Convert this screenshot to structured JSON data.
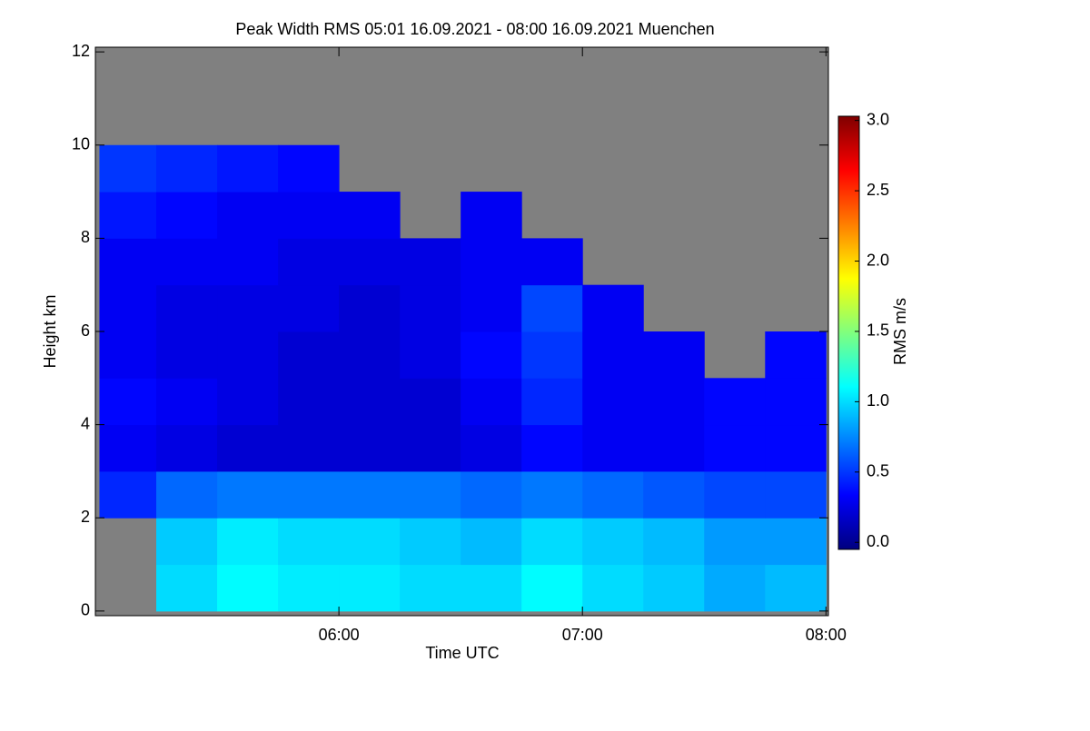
{
  "chart_data": {
    "type": "heatmap",
    "title": "Peak Width RMS   05:01 16.09.2021 - 08:00 16.09.2021 Muenchen",
    "x_label": "Time UTC",
    "y_label": "Height km",
    "colorbar_label": "RMS m/s",
    "xlim": [
      5.0,
      8.01
    ],
    "xticks": [
      {
        "value": 6,
        "label": "06:00"
      },
      {
        "value": 7,
        "label": "07:00"
      },
      {
        "value": 8,
        "label": "08:00"
      }
    ],
    "ylim": [
      -0.1,
      12.1
    ],
    "yticks": [
      0,
      2,
      4,
      6,
      8,
      10,
      12
    ],
    "clim": [
      -0.05,
      3.03
    ],
    "cticks": [
      {
        "value": 0,
        "label": "0.0"
      },
      {
        "value": 0.5,
        "label": "0.5"
      },
      {
        "value": 1,
        "label": "1.0"
      },
      {
        "value": 1.5,
        "label": "1.5"
      },
      {
        "value": 2,
        "label": "2.0"
      },
      {
        "value": 2.5,
        "label": "2.5"
      },
      {
        "value": 3,
        "label": "3.0"
      }
    ],
    "colormap": [
      "#00007f",
      "#0000ff",
      "#007fff",
      "#00ffff",
      "#7fff7f",
      "#ffff00",
      "#ff7f00",
      "#ff0000",
      "#7f0000"
    ],
    "nodata_color": "#808080",
    "xbins": [
      5.0167,
      5.25,
      5.5,
      5.75,
      6,
      6.25,
      6.5,
      6.75,
      7,
      7.25,
      7.5,
      7.75,
      8
    ],
    "ybins": [
      0,
      1,
      2,
      3,
      4,
      5,
      6,
      7,
      8,
      9,
      10,
      11,
      12
    ],
    "z": [
      [
        null,
        1.0,
        1.1,
        1.05,
        1.05,
        1.0,
        1.0,
        1.1,
        1.0,
        0.95,
        0.85,
        0.9
      ],
      [
        null,
        0.95,
        1.05,
        1.0,
        1.0,
        0.95,
        0.9,
        1.0,
        0.95,
        0.9,
        0.8,
        0.8
      ],
      [
        0.45,
        0.65,
        0.7,
        0.7,
        0.7,
        0.7,
        0.65,
        0.7,
        0.65,
        0.6,
        0.55,
        0.55
      ],
      [
        0.3,
        0.25,
        0.2,
        0.2,
        0.2,
        0.2,
        0.25,
        0.35,
        0.3,
        0.3,
        0.35,
        0.35
      ],
      [
        0.35,
        0.3,
        0.25,
        0.2,
        0.2,
        0.2,
        0.3,
        0.45,
        0.3,
        0.3,
        0.35,
        0.35
      ],
      [
        0.3,
        0.25,
        0.25,
        0.2,
        0.2,
        0.25,
        0.35,
        0.5,
        0.3,
        0.3,
        null,
        0.35
      ],
      [
        0.3,
        0.25,
        0.25,
        0.25,
        0.2,
        0.25,
        0.3,
        0.55,
        0.3,
        null,
        null,
        null
      ],
      [
        0.3,
        0.3,
        0.3,
        0.25,
        0.25,
        0.25,
        0.3,
        0.3,
        null,
        null,
        null,
        null
      ],
      [
        0.4,
        0.35,
        0.3,
        0.3,
        0.3,
        null,
        0.3,
        null,
        null,
        null,
        null,
        null
      ],
      [
        0.5,
        0.45,
        0.4,
        0.35,
        null,
        null,
        null,
        null,
        null,
        null,
        null,
        null
      ],
      [
        null,
        null,
        null,
        null,
        null,
        null,
        null,
        null,
        null,
        null,
        null,
        null
      ],
      [
        null,
        null,
        null,
        null,
        null,
        null,
        null,
        null,
        null,
        null,
        null,
        null
      ]
    ]
  }
}
